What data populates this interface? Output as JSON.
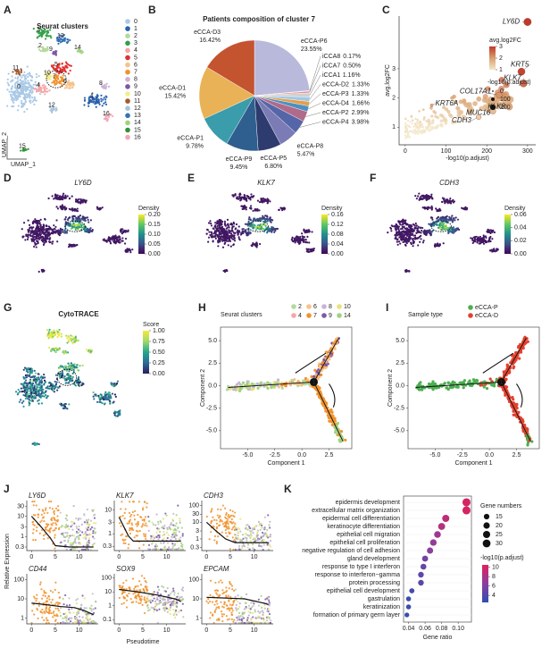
{
  "chart_data": [
    {
      "panel": "A",
      "type": "umap",
      "title": "Seurat clusters",
      "x_label": "UMAP_1",
      "y_label": "UMAP_2",
      "categories": [
        "0",
        "1",
        "2",
        "3",
        "4",
        "5",
        "6",
        "7",
        "8",
        "9",
        "10",
        "11",
        "12",
        "13",
        "14",
        "15",
        "16"
      ],
      "colors": [
        "#a9c9e6",
        "#2a62ae",
        "#b5d99c",
        "#33a047",
        "#f4a6a6",
        "#e0312f",
        "#f6c28b",
        "#f0922d",
        "#c9b3d6",
        "#7e57a6",
        "#f2ee8f",
        "#a45a2c",
        "#a8c4dc",
        "#3572b4",
        "#9fd27f",
        "#2f9236",
        "#f2a8b4"
      ]
    },
    {
      "panel": "B",
      "type": "pie",
      "title": "Patients composition of cluster 7",
      "categories": [
        "eCCA-P6",
        "iCCA8",
        "iCCA7",
        "iCCA1",
        "eCCA-D2",
        "eCCA-P3",
        "eCCA-D4",
        "eCCA-P2",
        "eCCA-P4",
        "eCCA-P8",
        "eCCA-P5",
        "eCCA-P9",
        "eCCA-P1",
        "eCCA-D1",
        "eCCA-D3"
      ],
      "values": [
        23.55,
        0.17,
        0.5,
        1.16,
        1.33,
        1.33,
        1.66,
        2.99,
        3.98,
        5.47,
        6.8,
        9.45,
        9.78,
        15.42,
        16.42
      ],
      "value_labels": [
        "23.55%",
        "0.17%",
        "0.50%",
        "1.16%",
        "1.33%",
        "1.33%",
        "1.66%",
        "2.99%",
        "3.98%",
        "5.47%",
        "6.80%",
        "9.45%",
        "9.78%",
        "15.42%",
        "16.42%"
      ],
      "colors": [
        "#b9b9dc",
        "#f2c4c4",
        "#e88a8a",
        "#d0d0d0",
        "#9fc8e6",
        "#e3a04a",
        "#4f8fc0",
        "#b06a8a",
        "#5566a8",
        "#7b7bb5",
        "#2d3b6e",
        "#2e5f8f",
        "#3b9cab",
        "#e9b257",
        "#c4532f"
      ]
    },
    {
      "panel": "C",
      "type": "scatter",
      "x_label": "-log10(p.adjust)",
      "y_label": "avg.log2FC",
      "xlim": [
        -15,
        320
      ],
      "ylim": [
        0.4,
        4.8
      ],
      "xticks": [
        0,
        100,
        200,
        300
      ],
      "yticks": [
        1,
        2,
        3
      ],
      "labels": [
        "LY6D",
        "KRT5",
        "KLK7",
        "COL17A1",
        "KLK8",
        "MUC16",
        "CDH3",
        "KRT6A"
      ],
      "x": [
        300,
        285,
        290,
        230,
        255,
        215,
        180,
        65
      ],
      "y": [
        4.6,
        2.9,
        2.5,
        2.1,
        1.7,
        1.55,
        1.35,
        1.75
      ],
      "color_title": "avg.log2FC",
      "color_ticks": [
        1,
        2,
        3
      ],
      "color_stops": [
        "#f3e6c8",
        "#d9a070",
        "#c0392b"
      ],
      "size_title": "-log10(p.adjust)",
      "size_ticks": [
        0,
        100,
        200
      ]
    },
    {
      "panel": "D",
      "type": "density",
      "gene": "LY6D",
      "colorbar_title": "Density",
      "colorbar_ticks": [
        {
          "value": 0,
          "label": "0.00"
        },
        0.05,
        {
          "value": 0.1,
          "label": "0.10"
        },
        0.15,
        {
          "value": 0.2,
          "label": "0.20"
        }
      ]
    },
    {
      "panel": "E",
      "type": "density",
      "gene": "KLK7",
      "colorbar_title": "Density",
      "colorbar_ticks": [
        {
          "value": 0,
          "label": "0.00"
        },
        0.04,
        0.08,
        0.12,
        0.16
      ]
    },
    {
      "panel": "F",
      "type": "density",
      "gene": "CDH3",
      "colorbar_title": "Density",
      "colorbar_ticks": [
        {
          "value": 0,
          "label": "0.00"
        },
        0.02,
        0.04,
        0.06
      ]
    },
    {
      "panel": "G",
      "type": "cytotrace",
      "title": "CytoTRACE",
      "colorbar_title": "Score",
      "colorbar_ticks": [
        {
          "value": 0,
          "label": "0.00"
        },
        0.25,
        {
          "value": 0.5,
          "label": "0.50"
        },
        0.75,
        {
          "value": 1,
          "label": "1.00"
        }
      ]
    },
    {
      "panel": "H",
      "type": "trajectory",
      "legend_title": "Seurat clusters",
      "node_label": "1",
      "legend": [
        {
          "name": "2",
          "color": "#b5d99c"
        },
        {
          "name": "6",
          "color": "#f6c28b"
        },
        {
          "name": "8",
          "color": "#c9b3d6"
        },
        {
          "name": "10",
          "color": "#e8e27a"
        },
        {
          "name": "4",
          "color": "#f4a6a6"
        },
        {
          "name": "7",
          "color": "#f0922d"
        },
        {
          "name": "9",
          "color": "#7e57a6"
        },
        {
          "name": "14",
          "color": "#9fd27f"
        }
      ],
      "x_label": "Component 1",
      "y_label": "Component 2",
      "xlim": [
        -7.5,
        4.6
      ],
      "ylim": [
        -7,
        6.5
      ],
      "xticks": [
        {
          "value": -5,
          "label": "-5.0"
        },
        -2.5,
        {
          "value": 0,
          "label": "0.0"
        },
        2.5
      ],
      "yticks": [
        {
          "value": -5,
          "label": "-5.0"
        },
        -2.5,
        {
          "value": 0,
          "label": "0.0"
        },
        2.5,
        {
          "value": 5,
          "label": "5.0"
        }
      ]
    },
    {
      "panel": "I",
      "type": "trajectory",
      "legend_title": "Sample type",
      "node_label": "1",
      "legend": [
        {
          "name": "eCCA-P",
          "color": "#4caf50"
        },
        {
          "name": "eCCA-D",
          "color": "#e2412f"
        }
      ],
      "x_label": "Component 1",
      "y_label": "Component 2",
      "xlim": [
        -7.5,
        4.6
      ],
      "ylim": [
        -7,
        6.5
      ],
      "xticks": [
        {
          "value": -5,
          "label": "-5.0"
        },
        -2.5,
        {
          "value": 0,
          "label": "0.0"
        },
        2.5
      ],
      "yticks": [
        {
          "value": -5,
          "label": "-5.0"
        },
        -2.5,
        {
          "value": 0,
          "label": "0.0"
        },
        2.5,
        {
          "value": 5,
          "label": "5.0"
        }
      ]
    },
    {
      "panel": "J",
      "type": "pseudotime",
      "y_label": "Relative Expression",
      "x_label": "Pseudotime",
      "log": true,
      "xlim": [
        -1,
        14
      ],
      "xticks": [
        0,
        5,
        10
      ],
      "panels": [
        {
          "gene": "LY6D",
          "ylim": [
            0.2,
            60
          ],
          "yticks": [
            0.3,
            1,
            3,
            10,
            30
          ],
          "trend": {
            "x": [
              0,
              2,
              4,
              5,
              8,
              13
            ],
            "y": [
              10,
              3,
              0.8,
              0.35,
              0.3,
              0.3
            ]
          }
        },
        {
          "gene": "KLK7",
          "ylim": [
            0.2,
            25
          ],
          "yticks": [
            0.3,
            1,
            3,
            10
          ],
          "trend": {
            "x": [
              0,
              1,
              2,
              3,
              6,
              13
            ],
            "y": [
              5,
              2,
              0.8,
              0.5,
              0.5,
              0.5
            ]
          }
        },
        {
          "gene": "CDH3",
          "ylim": [
            0.2,
            200
          ],
          "yticks": [
            0.3,
            1,
            3,
            10,
            30,
            100
          ],
          "trend": {
            "x": [
              0,
              2,
              4,
              6,
              13
            ],
            "y": [
              10,
              3,
              1,
              0.6,
              0.6
            ]
          }
        },
        {
          "gene": "CD44",
          "ylim": [
            0.5,
            200
          ],
          "yticks": [
            1,
            10,
            100
          ],
          "trend": {
            "x": [
              0,
              3,
              6,
              9,
              11,
              13
            ],
            "y": [
              6,
              5,
              4,
              3.5,
              2.5,
              1.5
            ]
          }
        },
        {
          "gene": "SOX9",
          "ylim": [
            0.05,
            200
          ],
          "yticks": [
            0.1,
            1,
            10,
            100
          ],
          "trend": {
            "x": [
              0,
              4,
              8,
              12,
              13
            ],
            "y": [
              15,
              10,
              6,
              3,
              2
            ]
          }
        },
        {
          "gene": "EPCAM",
          "ylim": [
            0.5,
            200
          ],
          "yticks": [
            1,
            10,
            100
          ],
          "trend": {
            "x": [
              0,
              4,
              8,
              12,
              13
            ],
            "y": [
              12,
              11,
              10,
              6,
              5
            ]
          }
        }
      ]
    },
    {
      "panel": "K",
      "type": "dotplot",
      "x_label": "Gene ratio",
      "categories": [
        "epidermis development",
        "extracellular matrix organization",
        "epidermal cell differentiation",
        "keratinocyte differentiation",
        "epithelial cell migration",
        "epithelial cell proliferation",
        "negative regulation of cell adhesion",
        "gland development",
        "response to type I interferon",
        "response to interferon−gamma",
        "protein processing",
        "epithelial cell development",
        "gastrulation",
        "keratinization",
        "formation of primary germ layer"
      ],
      "x": [
        0.11,
        0.11,
        0.085,
        0.08,
        0.075,
        0.07,
        0.066,
        0.06,
        0.058,
        0.055,
        0.055,
        0.044,
        0.04,
        0.04,
        0.038
      ],
      "counts": [
        32,
        32,
        25,
        24,
        22,
        21,
        19,
        18,
        17,
        16,
        16,
        13,
        12,
        12,
        11
      ],
      "neg_log10_padj": [
        10,
        10,
        9,
        8.5,
        7.5,
        7,
        6.5,
        5.5,
        5,
        4.5,
        4.5,
        3.5,
        3,
        3,
        2.8
      ],
      "xlim": [
        0.034,
        0.116
      ],
      "xticks": [
        0.04,
        0.06,
        0.08,
        {
          "value": 0.1,
          "label": "0.10"
        }
      ],
      "size_title": "Gene numbers",
      "size_ticks": [
        15,
        20,
        25,
        30
      ],
      "color_title": "-log10(p.adjust)",
      "color_ticks": [
        4,
        6,
        8,
        10
      ],
      "clim": [
        2.5,
        10.5
      ],
      "color_stops": [
        "#2f4fb0",
        "#8a3fa0",
        "#e0205a"
      ]
    }
  ]
}
